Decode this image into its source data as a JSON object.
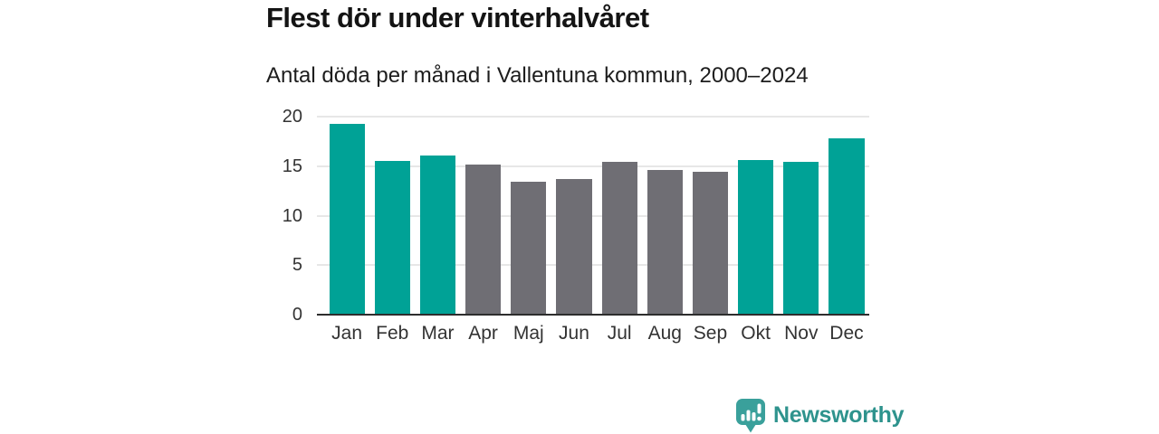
{
  "header": {
    "title": "Flest dör under vinterhalvåret",
    "subtitle": "Antal döda per månad i Vallentuna kommun, 2000–2024"
  },
  "chart_data": {
    "type": "bar",
    "title": "Flest dör under vinterhalvåret",
    "subtitle": "Antal döda per månad i Vallentuna kommun, 2000–2024",
    "categories": [
      "Jan",
      "Feb",
      "Mar",
      "Apr",
      "Maj",
      "Jun",
      "Jul",
      "Aug",
      "Sep",
      "Okt",
      "Nov",
      "Dec"
    ],
    "values": [
      19.3,
      15.5,
      16.1,
      15.2,
      13.4,
      13.7,
      15.4,
      14.6,
      14.4,
      15.6,
      15.4,
      17.8
    ],
    "bar_colors": [
      "teal",
      "teal",
      "teal",
      "gray",
      "gray",
      "gray",
      "gray",
      "gray",
      "gray",
      "teal",
      "teal",
      "teal"
    ],
    "palette": {
      "teal": "#00a296",
      "gray": "#6f6e74"
    },
    "xlabel": "",
    "ylabel": "",
    "ylim": [
      0,
      20
    ],
    "yticks": [
      0,
      5,
      10,
      15,
      20
    ],
    "grid": true,
    "legend": "none",
    "gridline_color": "#e7e7e7",
    "axis_line_color": "#2d2d2d",
    "tick_label_color": "#333333"
  },
  "footer": {
    "brand": "Newsworthy",
    "brand_color": "#2e938d",
    "logo_icon": "newsworthy-speech-bubble-bar-chart-icon",
    "logo_icon_color": "#3aa09b"
  }
}
